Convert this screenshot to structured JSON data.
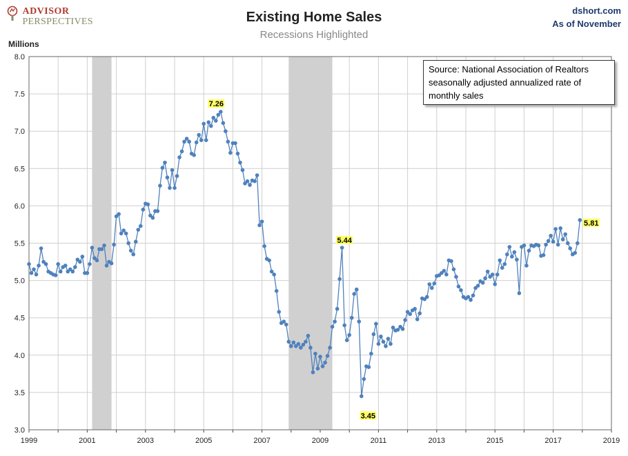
{
  "logo": {
    "line1": "ADVISOR",
    "line2": "PERSPECTIVES",
    "brand_color": "#b03a2e"
  },
  "title": "Existing Home Sales",
  "subtitle": "Recessions Highlighted",
  "site": {
    "name": "dshort.com",
    "asof": "As of November"
  },
  "source_note": "Source:  National Association of Realtors seasonally adjusted annualized rate of monthly  sales",
  "colors": {
    "line": "#4f81bd",
    "recession": "#d0d0d0",
    "grid": "#cfcfcf",
    "label_bg": "#ffff66"
  },
  "chart_data": {
    "type": "line",
    "ylabel": "Millions",
    "ylim": [
      3.0,
      8.0
    ],
    "yticks": [
      3.0,
      3.5,
      4.0,
      4.5,
      5.0,
      5.5,
      6.0,
      6.5,
      7.0,
      7.5,
      8.0
    ],
    "xlim": [
      1999,
      2019
    ],
    "xticks": [
      1999,
      2001,
      2003,
      2005,
      2007,
      2009,
      2011,
      2013,
      2015,
      2017,
      2019
    ],
    "start": "1999-01",
    "grid": true,
    "recessions": [
      [
        "2001-03",
        "2001-11"
      ],
      [
        "2007-12",
        "2009-06"
      ]
    ],
    "annotations": [
      {
        "date": "2005-09",
        "value": 7.26,
        "label": "7.26"
      },
      {
        "date": "2009-11",
        "value": 5.44,
        "label": "5.44"
      },
      {
        "date": "2010-07",
        "value": 3.45,
        "label": "3.45"
      },
      {
        "date": "2017-11",
        "value": 5.81,
        "label": "5.81"
      }
    ],
    "series": [
      {
        "values": [
          5.22,
          5.1,
          5.15,
          5.08,
          5.2,
          5.43,
          5.25,
          5.22,
          5.12,
          5.1,
          5.08,
          5.07,
          5.22,
          5.12,
          5.18,
          5.2,
          5.12,
          5.15,
          5.12,
          5.18,
          5.28,
          5.25,
          5.32,
          5.1,
          5.1,
          5.22,
          5.44,
          5.3,
          5.27,
          5.42,
          5.42,
          5.47,
          5.2,
          5.25,
          5.23,
          5.48,
          5.86,
          5.89,
          5.63,
          5.67,
          5.63,
          5.5,
          5.4,
          5.35,
          5.52,
          5.68,
          5.73,
          5.95,
          6.03,
          6.02,
          5.87,
          5.84,
          5.93,
          5.93,
          6.27,
          6.51,
          6.58,
          6.38,
          6.24,
          6.48,
          6.24,
          6.4,
          6.65,
          6.73,
          6.86,
          6.9,
          6.86,
          6.7,
          6.68,
          6.85,
          6.95,
          6.88,
          7.1,
          6.88,
          7.12,
          7.07,
          7.18,
          7.14,
          7.22,
          7.26,
          7.11,
          7.0,
          6.86,
          6.71,
          6.84,
          6.84,
          6.7,
          6.58,
          6.48,
          6.3,
          6.33,
          6.28,
          6.34,
          6.33,
          6.41,
          5.74,
          5.79,
          5.46,
          5.29,
          5.27,
          5.12,
          5.08,
          4.86,
          4.58,
          4.43,
          4.45,
          4.41,
          4.18,
          4.12,
          4.17,
          4.12,
          4.15,
          4.1,
          4.14,
          4.18,
          4.26,
          4.1,
          3.77,
          4.02,
          3.82,
          3.98,
          3.85,
          3.9,
          3.99,
          4.1,
          4.38,
          4.45,
          4.62,
          5.02,
          5.44,
          4.4,
          4.2,
          4.27,
          4.5,
          4.82,
          4.88,
          4.45,
          3.45,
          3.68,
          3.85,
          3.84,
          4.02,
          4.28,
          4.42,
          4.15,
          4.25,
          4.18,
          4.12,
          4.22,
          4.15,
          4.37,
          4.33,
          4.34,
          4.38,
          4.35,
          4.47,
          4.58,
          4.55,
          4.6,
          4.62,
          4.48,
          4.56,
          4.76,
          4.75,
          4.78,
          4.95,
          4.9,
          4.96,
          5.06,
          5.07,
          5.1,
          5.13,
          5.08,
          5.27,
          5.26,
          5.15,
          5.05,
          4.92,
          4.87,
          4.78,
          4.76,
          4.78,
          4.74,
          4.8,
          4.9,
          4.93,
          4.99,
          4.97,
          5.03,
          5.12,
          5.05,
          5.08,
          4.95,
          5.08,
          5.27,
          5.17,
          5.22,
          5.35,
          5.45,
          5.32,
          5.38,
          5.28,
          4.83,
          5.45,
          5.47,
          5.2,
          5.4,
          5.47,
          5.46,
          5.48,
          5.47,
          5.33,
          5.34,
          5.48,
          5.53,
          5.6,
          5.52,
          5.69,
          5.48,
          5.7,
          5.55,
          5.62,
          5.5,
          5.43,
          5.35,
          5.37,
          5.5,
          5.81
        ]
      }
    ]
  }
}
